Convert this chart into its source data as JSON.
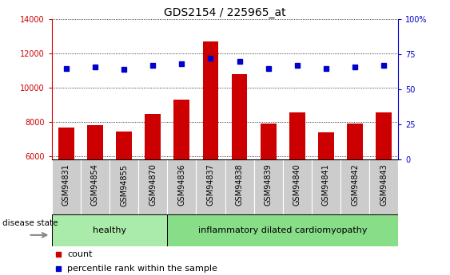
{
  "title": "GDS2154 / 225965_at",
  "samples": [
    "GSM94831",
    "GSM94854",
    "GSM94855",
    "GSM94870",
    "GSM94836",
    "GSM94837",
    "GSM94838",
    "GSM94839",
    "GSM94840",
    "GSM94841",
    "GSM94842",
    "GSM94843"
  ],
  "counts": [
    7650,
    7800,
    7450,
    8450,
    9300,
    12700,
    10800,
    7900,
    8550,
    7400,
    7900,
    8550
  ],
  "percentiles": [
    65,
    66,
    64,
    67,
    68,
    72,
    70,
    65,
    67,
    65,
    66,
    67
  ],
  "healthy_count": 4,
  "groups": [
    "healthy",
    "inflammatory dilated cardiomyopathy"
  ],
  "ylim_left": [
    5800,
    14000
  ],
  "ylim_right": [
    0,
    100
  ],
  "yticks_left": [
    6000,
    8000,
    10000,
    12000,
    14000
  ],
  "yticks_right": [
    0,
    25,
    50,
    75,
    100
  ],
  "bar_color": "#cc0000",
  "dot_color": "#0000cc",
  "bar_width": 0.55,
  "healthy_bg": "#aaeaaa",
  "disease_bg": "#88dd88",
  "label_bg": "#cccccc",
  "grid_color": "#000000",
  "legend_count_label": "count",
  "legend_pct_label": "percentile rank within the sample",
  "disease_state_label": "disease state",
  "font_size_title": 10,
  "font_size_ticks": 7,
  "font_size_legend": 8,
  "font_size_group": 8
}
